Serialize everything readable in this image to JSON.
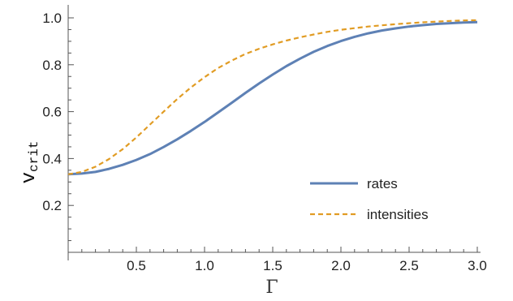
{
  "chart_data": {
    "type": "line",
    "xlabel": "Γ",
    "ylabel": "v",
    "ylabel_sub": "crit",
    "xlim": [
      0,
      3.0
    ],
    "ylim": [
      0,
      1.0
    ],
    "x_ticks": [
      "0.5",
      "1.0",
      "1.5",
      "2.0",
      "2.5",
      "3.0"
    ],
    "y_ticks": [
      "0.2",
      "0.4",
      "0.6",
      "0.8",
      "1.0"
    ],
    "legend_position": "bottom-right",
    "series": [
      {
        "name": "rates",
        "color": "#5e81b5",
        "style": "solid",
        "x": [
          0,
          0.1,
          0.2,
          0.3,
          0.4,
          0.5,
          0.6,
          0.7,
          0.8,
          0.9,
          1.0,
          1.1,
          1.2,
          1.3,
          1.4,
          1.5,
          1.6,
          1.7,
          1.8,
          1.9,
          2.0,
          2.1,
          2.2,
          2.3,
          2.4,
          2.5,
          2.6,
          2.7,
          2.8,
          2.9,
          3.0
        ],
        "y": [
          0.333,
          0.336,
          0.343,
          0.356,
          0.373,
          0.394,
          0.419,
          0.449,
          0.482,
          0.518,
          0.556,
          0.597,
          0.638,
          0.68,
          0.72,
          0.758,
          0.794,
          0.826,
          0.855,
          0.88,
          0.901,
          0.919,
          0.934,
          0.946,
          0.955,
          0.963,
          0.969,
          0.974,
          0.977,
          0.98,
          0.982
        ]
      },
      {
        "name": "intensities",
        "color": "#e19c24",
        "style": "dashed",
        "x": [
          0,
          0.1,
          0.2,
          0.3,
          0.4,
          0.5,
          0.6,
          0.7,
          0.8,
          0.9,
          1.0,
          1.1,
          1.2,
          1.3,
          1.4,
          1.5,
          1.6,
          1.7,
          1.8,
          1.9,
          2.0,
          2.1,
          2.2,
          2.3,
          2.4,
          2.5,
          2.6,
          2.7,
          2.8,
          2.9,
          3.0
        ],
        "y": [
          0.333,
          0.343,
          0.365,
          0.398,
          0.44,
          0.49,
          0.545,
          0.6,
          0.654,
          0.703,
          0.747,
          0.786,
          0.818,
          0.846,
          0.868,
          0.887,
          0.903,
          0.917,
          0.929,
          0.94,
          0.949,
          0.956,
          0.963,
          0.968,
          0.973,
          0.977,
          0.981,
          0.984,
          0.987,
          0.989,
          0.99
        ]
      }
    ]
  }
}
